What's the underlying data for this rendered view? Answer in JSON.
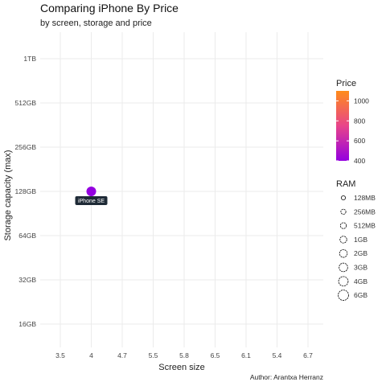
{
  "chart_data": {
    "type": "scatter",
    "title": "Comparing iPhone By Price",
    "subtitle": "by screen, storage and price",
    "xlabel": "Screen size",
    "ylabel": "Storage capacity (max)",
    "caption": "Author: Arantxa Herranz",
    "x_ticks": [
      "3.5",
      "4",
      "4.7",
      "5.5",
      "5.8",
      "6.5",
      "6.1",
      "5.4",
      "6.7"
    ],
    "y_ticks": [
      "16GB",
      "32GB",
      "64GB",
      "128GB",
      "256GB",
      "512GB",
      "1TB"
    ],
    "grid": true,
    "points": [
      {
        "label": "iPhone SE",
        "x": "4",
        "y": "128GB",
        "price": 400,
        "ram": "2GB"
      }
    ],
    "color_legend": {
      "title": "Price",
      "ticks": [
        400,
        600,
        800,
        1000
      ],
      "range": [
        400,
        1100
      ],
      "colors": [
        "#9400e0",
        "#ff8c1a"
      ]
    },
    "size_legend": {
      "title": "RAM",
      "items": [
        "128MB",
        "256MB",
        "512MB",
        "1GB",
        "2GB",
        "3GB",
        "4GB",
        "6GB"
      ]
    },
    "legend_position": "right"
  }
}
